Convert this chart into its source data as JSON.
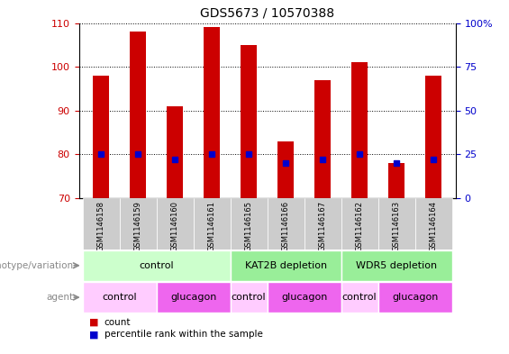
{
  "title": "GDS5673 / 10570388",
  "samples": [
    "GSM1146158",
    "GSM1146159",
    "GSM1146160",
    "GSM1146161",
    "GSM1146165",
    "GSM1146166",
    "GSM1146167",
    "GSM1146162",
    "GSM1146163",
    "GSM1146164"
  ],
  "counts": [
    98,
    108,
    91,
    109,
    105,
    83,
    97,
    101,
    78,
    98
  ],
  "percentile_ranks": [
    25,
    25,
    22,
    25,
    25,
    20,
    22,
    25,
    20,
    22
  ],
  "y_min": 70,
  "y_max": 110,
  "y_ticks": [
    70,
    80,
    90,
    100,
    110
  ],
  "right_y_ticks": [
    0,
    25,
    50,
    75,
    100
  ],
  "right_y_labels": [
    "0",
    "25",
    "50",
    "75",
    "100%"
  ],
  "bar_color": "#CC0000",
  "percentile_color": "#0000CC",
  "bar_width": 0.45,
  "genotype_groups": [
    {
      "label": "control",
      "start": 0,
      "end": 4,
      "color": "#CCFFCC"
    },
    {
      "label": "KAT2B depletion",
      "start": 4,
      "end": 7,
      "color": "#99EE99"
    },
    {
      "label": "WDR5 depletion",
      "start": 7,
      "end": 10,
      "color": "#99EE99"
    }
  ],
  "agent_groups": [
    {
      "label": "control",
      "start": 0,
      "end": 2,
      "color": "#FFCCFF"
    },
    {
      "label": "glucagon",
      "start": 2,
      "end": 4,
      "color": "#EE66EE"
    },
    {
      "label": "control",
      "start": 4,
      "end": 5,
      "color": "#FFCCFF"
    },
    {
      "label": "glucagon",
      "start": 5,
      "end": 7,
      "color": "#EE66EE"
    },
    {
      "label": "control",
      "start": 7,
      "end": 8,
      "color": "#FFCCFF"
    },
    {
      "label": "glucagon",
      "start": 8,
      "end": 10,
      "color": "#EE66EE"
    }
  ],
  "legend_count_color": "#CC0000",
  "legend_percentile_color": "#0000CC",
  "plot_bg": "white",
  "axis_label_color_left": "#CC0000",
  "axis_label_color_right": "#0000CC",
  "sample_bg": "#CCCCCC",
  "left_label_color": "#888888",
  "geno_label": "genotype/variation",
  "agent_label": "agent"
}
